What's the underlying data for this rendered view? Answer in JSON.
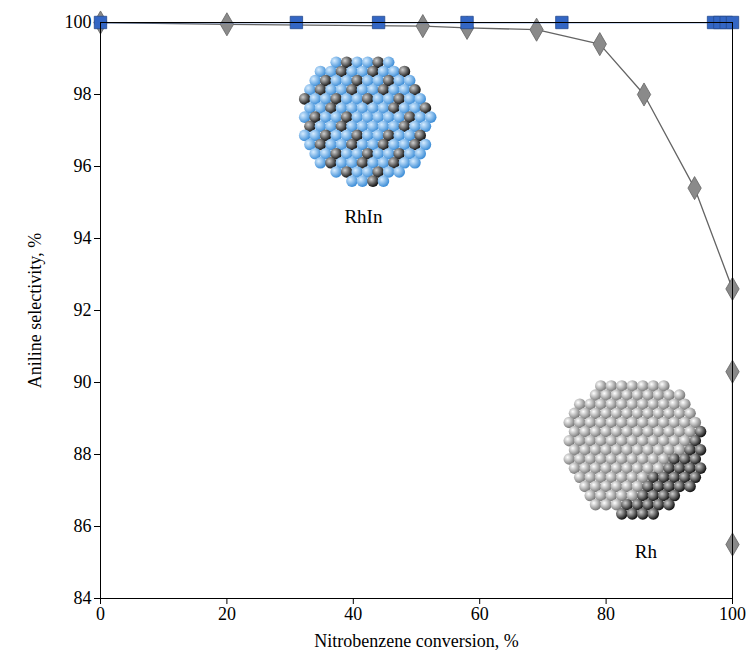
{
  "chart_data": {
    "type": "line",
    "xlabel": "Nitrobenzene conversion, %",
    "ylabel": "Aniline selectivity, %",
    "xlim": [
      0,
      100
    ],
    "xticks": [
      0,
      20,
      40,
      60,
      80,
      100
    ],
    "ylim": [
      84,
      100
    ],
    "yticks": [
      84,
      86,
      88,
      90,
      92,
      94,
      96,
      98,
      100
    ],
    "grid": false,
    "series": [
      {
        "name": "Rh",
        "color": "#8a8a8a",
        "marker": "diamond",
        "x": [
          0,
          20,
          51,
          58,
          69,
          79,
          86,
          94,
          100,
          100,
          100
        ],
        "values": [
          100,
          99.95,
          99.9,
          99.85,
          99.8,
          99.4,
          98,
          95.4,
          92.6,
          90.3,
          85.5
        ]
      },
      {
        "name": "RhIn",
        "color": "#3366c4",
        "marker": "square",
        "x": [
          0,
          31,
          44,
          58,
          73,
          97,
          98,
          99,
          100
        ],
        "values": [
          100,
          100,
          100,
          100,
          100,
          100,
          100,
          100,
          100
        ]
      }
    ],
    "annotations": [
      {
        "text": "RhIn",
        "x": 41.6,
        "y": 94.6
      },
      {
        "text": "Rh",
        "x": 86.3,
        "y": 85.3
      }
    ]
  }
}
